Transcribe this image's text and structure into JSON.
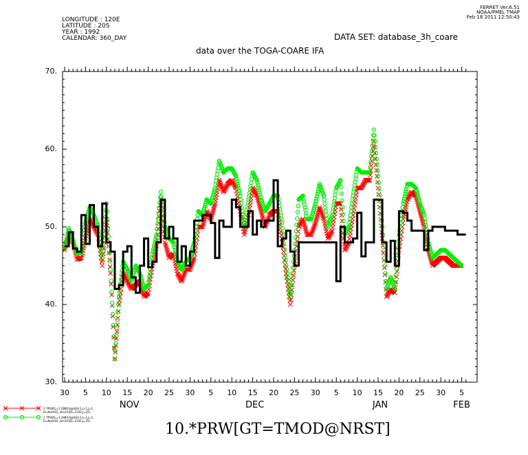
{
  "header": {
    "lines": [
      "LONGITUDE : 120E",
      "LATITUDE : 20S",
      "YEAR : 1992",
      "CALENDAR: 360_DAY"
    ],
    "dataset": "DATA SET: database_3h_coare",
    "subtitle": "data over the TOGA-COARE IFA",
    "ferret_lines": [
      "FERRET Ver.6.51",
      "NOAA/PMEL TMAP",
      "Feb 18 2011 12:50:43"
    ]
  },
  "legend": [
    {
      "text_lines": [
        "1.*PRW[L=1:2880:8@SEA:3,I=1,J=1,",
        "D=NetUS5_dim10][D=155E,J=25]"
      ],
      "color": "#ff0000",
      "marker": "x"
    },
    {
      "text_lines": [
        "1.*PRW[L=1:2880:8@SEA:3,I=1,J=1,",
        "D=NetUS5_dim10][D=155E,J=25]"
      ],
      "color": "#00ee00",
      "marker": "o"
    }
  ],
  "bottom_title": "10.*PRW[GT=TMOD@NRST]",
  "chart_data": {
    "type": "line",
    "title": "data over the TOGA-COARE IFA",
    "xlabel": "",
    "ylabel": "",
    "ylim": [
      30,
      70
    ],
    "yticks": [
      30,
      40,
      50,
      60,
      70
    ],
    "ytick_labels": [
      "30.",
      "40.",
      "50.",
      "60.",
      "70."
    ],
    "xlim": [
      0,
      96
    ],
    "x_unit": "days since Oct 30",
    "xticks": [
      0,
      5,
      10,
      15,
      20,
      25,
      30,
      35,
      40,
      45,
      50,
      55,
      60,
      65,
      70,
      75,
      80,
      85,
      90,
      95
    ],
    "xtick_labels": [
      "30",
      "5",
      "10",
      "15",
      "20",
      "25",
      "30",
      "5",
      "10",
      "15",
      "20",
      "25",
      "30",
      "5",
      "10",
      "15",
      "20",
      "25",
      "30",
      "5"
    ],
    "month_labels": [
      {
        "label": "NOV",
        "x": 15.5
      },
      {
        "label": "DEC",
        "x": 45.5
      },
      {
        "label": "JAN",
        "x": 75.5
      },
      {
        "label": "FEB",
        "x": 95
      }
    ],
    "series": [
      {
        "name": "TMOD",
        "style": "step",
        "color": "#000000",
        "x": [
          0,
          1,
          2,
          3,
          4,
          5,
          6,
          7,
          8,
          9,
          10,
          11,
          12,
          13,
          14,
          15,
          16,
          17,
          18,
          19,
          20,
          21,
          22,
          23,
          24,
          25,
          26,
          27,
          28,
          29,
          30,
          31,
          32,
          33,
          34,
          35,
          36,
          37,
          38,
          39,
          40,
          41,
          42,
          43,
          44,
          45,
          46,
          47,
          48,
          49,
          50,
          51,
          52,
          53,
          54,
          55,
          56,
          57,
          58,
          59,
          60,
          61,
          62,
          63,
          64,
          65,
          66,
          67,
          68,
          69,
          70,
          71,
          72,
          73,
          74,
          75,
          76,
          77,
          78,
          79,
          80,
          81,
          82,
          83,
          84,
          85,
          86,
          87,
          88,
          89,
          90,
          91,
          92,
          93,
          94,
          95
        ],
        "y": [
          47.5,
          49.3,
          47.2,
          46.8,
          51.5,
          47.8,
          52.8,
          50.0,
          47.5,
          53.0,
          48.0,
          46.8,
          42.0,
          42.5,
          46.8,
          47.5,
          43.5,
          41.5,
          45.0,
          48.5,
          44.8,
          45.5,
          48.0,
          53.5,
          48.5,
          50.0,
          48.5,
          45.5,
          47.5,
          45.0,
          46.8,
          50.8,
          50.8,
          51.5,
          51.5,
          50.5,
          46.0,
          50.8,
          50.0,
          50.0,
          53.5,
          52.5,
          50.0,
          50.0,
          52.0,
          49.0,
          50.8,
          50.0,
          50.8,
          50.8,
          56.0,
          47.5,
          48.5,
          49.5,
          46.8,
          45.0,
          48.0,
          48.0,
          48.0,
          48.0,
          48.0,
          48.0,
          48.0,
          48.0,
          48.0,
          43.0,
          50.0,
          48.0,
          48.0,
          48.5,
          51.8,
          46.2,
          48.0,
          48.0,
          53.5,
          53.5,
          48.0,
          45.5,
          48.2,
          45.0,
          52.0,
          51.8,
          50.8,
          49.5,
          49.5,
          49.5,
          47.0,
          49.5,
          50.0,
          50.0,
          50.0,
          49.5,
          49.5,
          49.5,
          49.0,
          49.0
        ]
      },
      {
        "name": "PRW 155E",
        "style": "markers",
        "marker": "x",
        "color": "#ff0000",
        "x": [
          0,
          1,
          2,
          3,
          4,
          5,
          6,
          7,
          8,
          9,
          10,
          11,
          12,
          13,
          14,
          15,
          16,
          17,
          18,
          19,
          20,
          21,
          22,
          23,
          24,
          25,
          26,
          27,
          28,
          29,
          30,
          31,
          32,
          33,
          34,
          35,
          36,
          37,
          38,
          39,
          40,
          41,
          42,
          43,
          44,
          45,
          46,
          47,
          48,
          49,
          50,
          51,
          52,
          53,
          54,
          55,
          56,
          57,
          58,
          59,
          60,
          61,
          62,
          63,
          64,
          65,
          66,
          67,
          68,
          69,
          70,
          71,
          72,
          73,
          74,
          75,
          76,
          77,
          78,
          79,
          80,
          81,
          82,
          83,
          84,
          85,
          86,
          87,
          88,
          89,
          90,
          91,
          92,
          93,
          94,
          95
        ],
        "y": [
          47.0,
          49.0,
          48.0,
          45.8,
          46.0,
          48.5,
          51.0,
          50.0,
          49.0,
          45.0,
          51.0,
          44.0,
          33.0,
          40.0,
          44.0,
          43.0,
          42.0,
          42.5,
          43.0,
          41.0,
          41.5,
          45.0,
          47.5,
          53.5,
          48.0,
          46.0,
          46.5,
          44.0,
          43.0,
          44.5,
          44.5,
          46.0,
          50.0,
          50.0,
          52.0,
          51.0,
          53.0,
          56.0,
          54.5,
          55.5,
          56.0,
          55.0,
          52.0,
          49.0,
          51.5,
          55.0,
          54.0,
          52.0,
          50.0,
          51.5,
          52.0,
          52.0,
          48.5,
          44.0,
          40.0,
          45.0,
          50.0,
          51.0,
          49.0,
          49.0,
          50.5,
          52.5,
          51.0,
          48.5,
          49.5,
          53.0,
          53.0,
          47.0,
          48.0,
          51.5,
          55.0,
          55.0,
          56.0,
          56.0,
          61.0,
          55.0,
          48.5,
          41.0,
          42.0,
          41.5,
          47.0,
          51.0,
          53.5,
          54.5,
          54.0,
          52.0,
          50.0,
          47.0,
          45.0,
          45.5,
          46.0,
          46.0,
          45.5,
          45.0,
          45.0,
          45.0
        ]
      },
      {
        "name": "PRW 155E (green)",
        "style": "markers",
        "marker": "o",
        "color": "#00ee00",
        "x": [
          0,
          1,
          2,
          3,
          4,
          5,
          6,
          7,
          8,
          9,
          10,
          11,
          12,
          13,
          14,
          15,
          16,
          17,
          18,
          19,
          20,
          21,
          22,
          23,
          24,
          25,
          26,
          27,
          28,
          29,
          30,
          31,
          32,
          33,
          34,
          35,
          36,
          37,
          38,
          39,
          40,
          41,
          42,
          43,
          44,
          45,
          46,
          47,
          48,
          49,
          50,
          51,
          52,
          53,
          54,
          55,
          56,
          57,
          58,
          59,
          60,
          61,
          62,
          63,
          64,
          65,
          66,
          67,
          68,
          69,
          70,
          71,
          72,
          73,
          74,
          75,
          76,
          77,
          78,
          79,
          80,
          81,
          82,
          83,
          84,
          85,
          86,
          87,
          88,
          89,
          90,
          91,
          92,
          93,
          94,
          95
        ],
        "y": [
          47.2,
          49.8,
          48.2,
          46.5,
          46.8,
          50.5,
          52.5,
          51.5,
          50.0,
          46.0,
          53.0,
          44.5,
          33.0,
          41.0,
          45.5,
          44.5,
          43.0,
          45.0,
          44.0,
          42.0,
          42.5,
          46.5,
          49.0,
          54.5,
          50.0,
          48.5,
          48.0,
          45.5,
          44.5,
          45.5,
          46.0,
          48.0,
          52.0,
          51.5,
          53.5,
          53.0,
          55.0,
          58.5,
          57.0,
          57.5,
          57.5,
          56.5,
          54.0,
          50.0,
          53.5,
          57.0,
          56.0,
          53.5,
          52.0,
          53.0,
          54.0,
          54.0,
          50.5,
          45.0,
          41.0,
          47.0,
          53.5,
          54.0,
          51.0,
          51.0,
          53.0,
          55.5,
          54.0,
          50.0,
          51.5,
          55.0,
          56.0,
          49.0,
          50.0,
          54.0,
          57.5,
          57.0,
          57.0,
          57.0,
          62.5,
          56.5,
          50.0,
          42.0,
          43.5,
          42.0,
          49.0,
          53.0,
          55.5,
          55.5,
          55.0,
          53.0,
          51.5,
          48.0,
          46.0,
          46.5,
          47.0,
          47.0,
          46.5,
          46.0,
          45.5,
          45.0
        ]
      }
    ]
  }
}
